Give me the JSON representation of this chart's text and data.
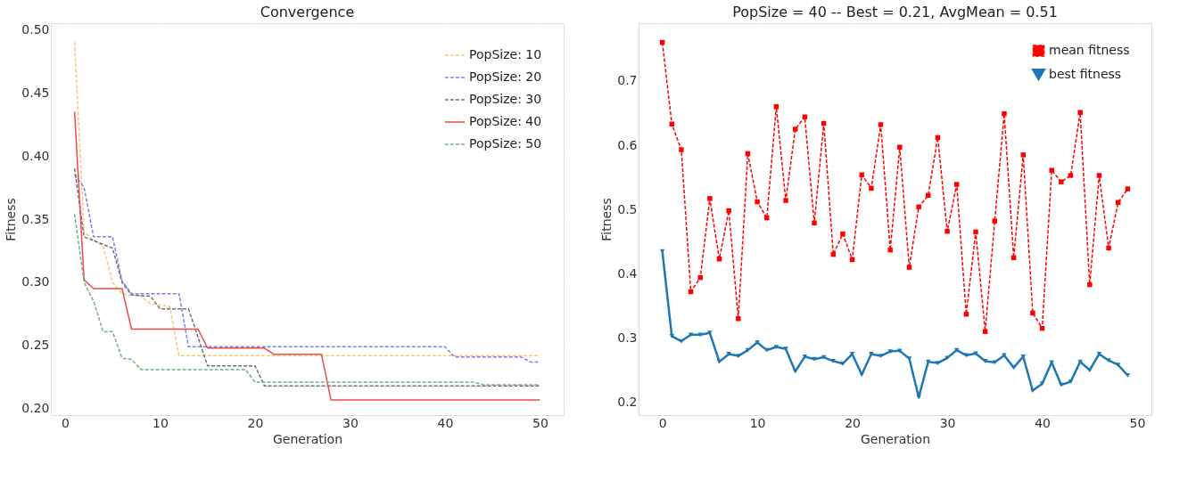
{
  "chart_data": [
    {
      "type": "line",
      "title": "Convergence",
      "xlabel": "Generation",
      "ylabel": "Fitness",
      "xlim": [
        -1.5,
        52.5
      ],
      "ylim": [
        0.195,
        0.505
      ],
      "xticks": [
        0,
        10,
        20,
        30,
        40,
        50
      ],
      "yticks": [
        {
          "value": 0.2,
          "label": "0.20"
        },
        {
          "value": 0.25,
          "label": "0.25"
        },
        {
          "value": 0.3,
          "label": "0.30"
        },
        {
          "value": 0.35,
          "label": "0.35"
        },
        {
          "value": 0.4,
          "label": "0.40"
        },
        {
          "value": 0.45,
          "label": "0.45"
        },
        {
          "value": 0.5,
          "label": "0.50"
        }
      ],
      "grid": true,
      "legend": "top right",
      "series": [
        {
          "name": "PopSize: 10",
          "color": "#f5c97e",
          "line_style": "dashed",
          "x": [
            1,
            2,
            3,
            4,
            5,
            6,
            8,
            9,
            11,
            12,
            50
          ],
          "values": [
            0.49,
            0.34,
            0.333,
            0.329,
            0.3,
            0.291,
            0.289,
            0.283,
            0.281,
            0.242,
            0.242
          ]
        },
        {
          "name": "PopSize: 20",
          "color": "#8080f0",
          "line_style": "dashed",
          "x": [
            1,
            2,
            3,
            5,
            6,
            7,
            12,
            13,
            40,
            41,
            48,
            49,
            50
          ],
          "values": [
            0.385,
            0.375,
            0.336,
            0.336,
            0.301,
            0.291,
            0.291,
            0.249,
            0.249,
            0.241,
            0.241,
            0.237,
            0.237
          ]
        },
        {
          "name": "PopSize: 30",
          "color": "#70707c",
          "line_style": "dashed",
          "x": [
            1,
            2,
            5,
            6,
            7,
            9,
            10,
            13,
            15,
            20,
            21,
            50
          ],
          "values": [
            0.39,
            0.336,
            0.327,
            0.3,
            0.29,
            0.289,
            0.279,
            0.279,
            0.234,
            0.234,
            0.218,
            0.218
          ]
        },
        {
          "name": "PopSize: 40",
          "color": "#f04a4a",
          "line_style": "solid",
          "x": [
            1,
            2,
            3,
            6,
            7,
            14,
            15,
            21,
            22,
            27,
            28,
            50
          ],
          "values": [
            0.435,
            0.302,
            0.295,
            0.295,
            0.263,
            0.263,
            0.248,
            0.248,
            0.243,
            0.243,
            0.207,
            0.207
          ]
        },
        {
          "name": "PopSize: 50",
          "color": "#74b27e",
          "line_style": "dashed",
          "x": [
            1,
            2,
            3,
            4,
            5,
            6,
            7,
            8,
            19,
            20,
            43,
            44,
            50
          ],
          "values": [
            0.354,
            0.3,
            0.285,
            0.261,
            0.261,
            0.24,
            0.239,
            0.231,
            0.231,
            0.221,
            0.221,
            0.219,
            0.219
          ]
        }
      ]
    },
    {
      "type": "line",
      "title": "PopSize = 40 -- Best = 0.21, AvgMean = 0.51",
      "xlabel": "Generation",
      "ylabel": "Fitness",
      "xlim": [
        -2.5,
        51.5
      ],
      "ylim": [
        0.18,
        0.79
      ],
      "xticks": [
        0,
        10,
        20,
        30,
        40,
        50
      ],
      "yticks": [
        0.2,
        0.3,
        0.4,
        0.5,
        0.6,
        0.7
      ],
      "grid": true,
      "legend": "top right",
      "series": [
        {
          "name": "mean fitness",
          "color": "#ff0000",
          "line_style": "dashed",
          "marker": "square",
          "x": [
            0,
            1,
            2,
            3,
            4,
            5,
            6,
            7,
            8,
            9,
            10,
            11,
            12,
            13,
            14,
            15,
            16,
            17,
            18,
            19,
            20,
            21,
            22,
            23,
            24,
            25,
            26,
            27,
            28,
            29,
            30,
            31,
            32,
            33,
            34,
            35,
            36,
            37,
            38,
            39,
            40,
            41,
            42,
            43,
            44,
            45,
            46,
            47,
            48,
            49
          ],
          "values": [
            0.76,
            0.633,
            0.593,
            0.372,
            0.394,
            0.517,
            0.423,
            0.498,
            0.33,
            0.587,
            0.512,
            0.487,
            0.66,
            0.514,
            0.625,
            0.644,
            0.479,
            0.634,
            0.43,
            0.462,
            0.422,
            0.554,
            0.533,
            0.632,
            0.437,
            0.597,
            0.41,
            0.504,
            0.522,
            0.612,
            0.466,
            0.539,
            0.337,
            0.465,
            0.31,
            0.482,
            0.649,
            0.425,
            0.585,
            0.339,
            0.315,
            0.561,
            0.543,
            0.553,
            0.651,
            0.383,
            0.553,
            0.44,
            0.511,
            0.532
          ]
        },
        {
          "name": "best fitness",
          "color": "#1f77b4",
          "line_style": "solid",
          "marker": "triangle",
          "x": [
            0,
            1,
            2,
            3,
            4,
            5,
            6,
            7,
            8,
            9,
            10,
            11,
            12,
            13,
            14,
            15,
            16,
            17,
            18,
            19,
            20,
            21,
            22,
            23,
            24,
            25,
            26,
            27,
            28,
            29,
            30,
            31,
            32,
            33,
            34,
            35,
            36,
            37,
            38,
            39,
            40,
            41,
            42,
            43,
            44,
            45,
            46,
            47,
            48,
            49
          ],
          "values": [
            0.435,
            0.303,
            0.295,
            0.305,
            0.305,
            0.308,
            0.263,
            0.275,
            0.272,
            0.281,
            0.293,
            0.281,
            0.286,
            0.283,
            0.248,
            0.271,
            0.267,
            0.27,
            0.264,
            0.26,
            0.275,
            0.243,
            0.275,
            0.272,
            0.279,
            0.28,
            0.268,
            0.208,
            0.263,
            0.261,
            0.269,
            0.281,
            0.273,
            0.276,
            0.264,
            0.262,
            0.273,
            0.254,
            0.271,
            0.218,
            0.229,
            0.262,
            0.227,
            0.232,
            0.263,
            0.25,
            0.275,
            0.265,
            0.258,
            0.242
          ]
        }
      ]
    }
  ]
}
